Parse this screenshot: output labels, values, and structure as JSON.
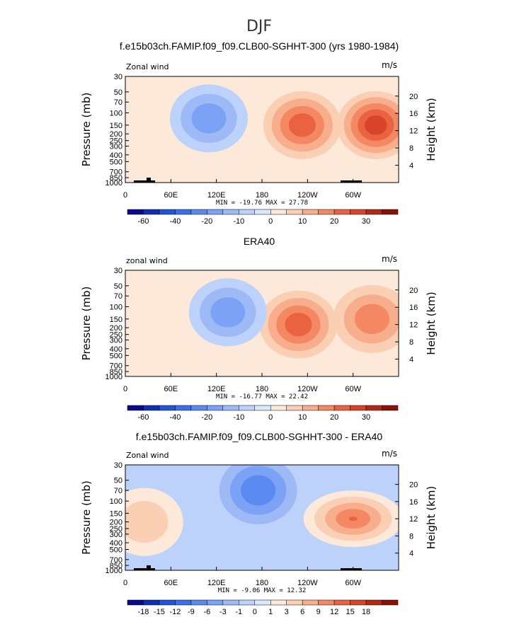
{
  "figure_title": "DJF",
  "chart_data": [
    {
      "type": "heatmap",
      "title": "f.e15b03ch.FAMIP.f09_f09.CLB00-SGHHT-300 (yrs 1980-1984)",
      "left_label": "Zonal wind",
      "units": "m/s",
      "ylabel": "Pressure (mb)",
      "ylabel_right": "Height (km)",
      "y_ticks": [
        "30",
        "50",
        "70",
        "100",
        "150",
        "200",
        "250",
        "300",
        "400",
        "500",
        "700",
        "850",
        "1000"
      ],
      "y_ticks_right": [
        "20",
        "16",
        "12",
        "8",
        "4"
      ],
      "x_ticks": [
        "0",
        "60E",
        "120E",
        "180",
        "120W",
        "60W"
      ],
      "stats": "MIN = -19.76   MAX = 27.78",
      "colorbar_labels": [
        "-60",
        "-40",
        "-20",
        "-10",
        "0",
        "10",
        "20",
        "30"
      ],
      "colorbar_levels": [
        -70,
        -60,
        -50,
        -40,
        -30,
        -20,
        -15,
        -10,
        -5,
        0,
        5,
        10,
        15,
        20,
        25,
        30,
        35
      ],
      "jets": [
        {
          "lon": 233,
          "p": 150,
          "max": 24
        },
        {
          "lon": 330,
          "p": 150,
          "max": 28
        },
        {
          "lon": 110,
          "p": 120,
          "max": -19
        }
      ]
    },
    {
      "type": "heatmap",
      "title": "ERA40",
      "left_label": "zonal wind",
      "units": "m/s",
      "ylabel": "Pressure (mb)",
      "ylabel_right": "Height (km)",
      "y_ticks": [
        "30",
        "50",
        "70",
        "100",
        "150",
        "200",
        "250",
        "300",
        "400",
        "500",
        "700",
        "850",
        "1000"
      ],
      "y_ticks_right": [
        "20",
        "16",
        "12",
        "8",
        "4"
      ],
      "x_ticks": [
        "0",
        "60E",
        "120E",
        "180",
        "120W",
        "60W"
      ],
      "stats": "MIN = -16.77   MAX = 22.42",
      "colorbar_labels": [
        "-60",
        "-40",
        "-20",
        "-10",
        "0",
        "10",
        "20",
        "30"
      ],
      "colorbar_levels": [
        -70,
        -60,
        -50,
        -40,
        -30,
        -20,
        -15,
        -10,
        -5,
        0,
        5,
        10,
        15,
        20,
        25,
        30,
        35
      ],
      "jets": [
        {
          "lon": 228,
          "p": 180,
          "max": 22
        },
        {
          "lon": 325,
          "p": 150,
          "max": 17
        },
        {
          "lon": 135,
          "p": 120,
          "max": -17
        }
      ]
    },
    {
      "type": "heatmap",
      "title": "f.e15b03ch.FAMIP.f09_f09.CLB00-SGHHT-300 - ERA40",
      "left_label": "Zonal wind",
      "units": "m/s",
      "ylabel": "Pressure (mb)",
      "ylabel_right": "Height (km)",
      "y_ticks": [
        "30",
        "50",
        "70",
        "100",
        "150",
        "200",
        "250",
        "300",
        "400",
        "500",
        "700",
        "850",
        "1000"
      ],
      "y_ticks_right": [
        "20",
        "16",
        "12",
        "8",
        "4"
      ],
      "x_ticks": [
        "0",
        "60E",
        "120E",
        "180",
        "120W",
        "60W"
      ],
      "stats": "MIN =  -9.06   MAX =  12.32",
      "colorbar_labels": [
        "-18",
        "-15",
        "-12",
        "-9",
        "-6",
        "-3",
        "-1",
        "0",
        "1",
        "3",
        "6",
        "9",
        "12",
        "15",
        "18"
      ],
      "colorbar_levels": [
        -21,
        -18,
        -15,
        -12,
        -9,
        -6,
        -3,
        -1,
        0,
        1,
        3,
        6,
        9,
        12,
        15,
        18,
        21
      ],
      "jets": [
        {
          "lon": 300,
          "p": 180,
          "max": 12
        },
        {
          "lon": 25,
          "p": 200,
          "max": 4
        },
        {
          "lon": 175,
          "p": 70,
          "max": -9
        }
      ]
    }
  ],
  "colors": {
    "palette": [
      "#0a0a8c",
      "#0f2fb5",
      "#1f55d9",
      "#3b6fe6",
      "#5a8af0",
      "#7ba2f5",
      "#9dbaf7",
      "#bdd2fb",
      "#d9e8fd",
      "#fde9d9",
      "#fbcfb4",
      "#f8ad8c",
      "#f38862",
      "#ea6341",
      "#d8432a",
      "#b32817",
      "#8a1208"
    ]
  }
}
